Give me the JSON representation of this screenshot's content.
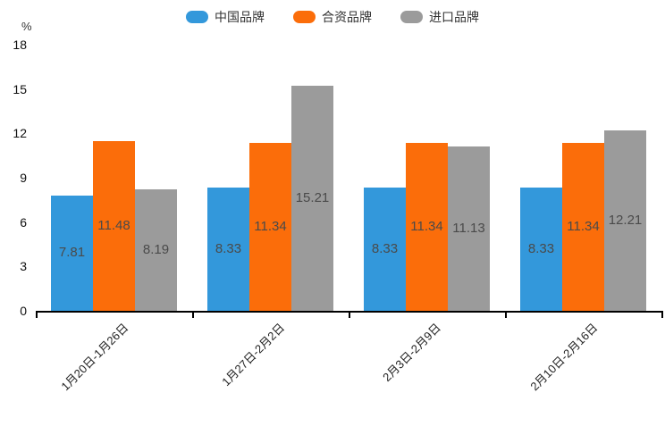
{
  "chart_data": {
    "type": "bar",
    "title": "",
    "unit_label": "%",
    "categories": [
      "1月20日-1月26日",
      "1月27日-2月2日",
      "2月3日-2月9日",
      "2月10日-2月16日"
    ],
    "series": [
      {
        "name": "中国品牌",
        "color": "#3398DB",
        "values": [
          7.81,
          8.33,
          8.33,
          8.33
        ]
      },
      {
        "name": "合资品牌",
        "color": "#FB6D0A",
        "values": [
          11.48,
          11.34,
          11.34,
          11.34
        ]
      },
      {
        "name": "进口品牌",
        "color": "#9B9B9B",
        "values": [
          8.19,
          15.21,
          11.13,
          12.21
        ]
      }
    ],
    "ylim": [
      0,
      18
    ],
    "yticks": [
      0,
      3,
      6,
      9,
      12,
      15,
      18
    ],
    "grid": false,
    "legend_position": "top-center",
    "bar_label_position": "inside-center",
    "bar_label_color": "#4a4a4a",
    "axis_color": "#000000",
    "background_color": "#ffffff"
  }
}
